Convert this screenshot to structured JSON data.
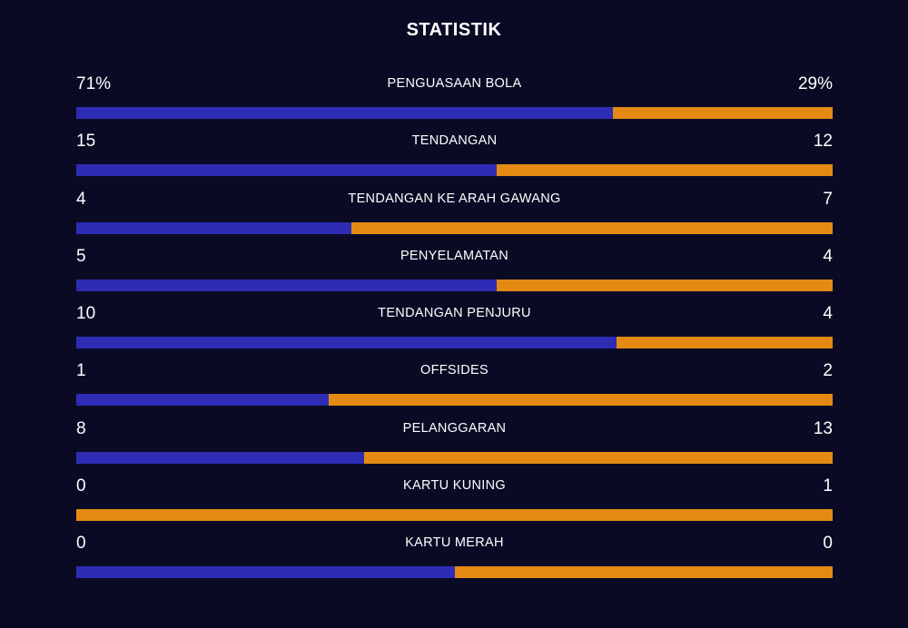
{
  "title": "STATISTIK",
  "colors": {
    "background": "#0a0a25",
    "home": "#2e2cb5",
    "away": "#e48a13",
    "text": "#ffffff"
  },
  "stats": [
    {
      "label": "PENGUASAAN BOLA",
      "home": "71%",
      "away": "29%",
      "home_share": 0.71
    },
    {
      "label": "TENDANGAN",
      "home": "15",
      "away": "12",
      "home_share": 0.5556
    },
    {
      "label": "TENDANGAN KE ARAH GAWANG",
      "home": "4",
      "away": "7",
      "home_share": 0.3636
    },
    {
      "label": "PENYELAMATAN",
      "home": "5",
      "away": "4",
      "home_share": 0.5556
    },
    {
      "label": "TENDANGAN PENJURU",
      "home": "10",
      "away": "4",
      "home_share": 0.7143
    },
    {
      "label": "OFFSIDES",
      "home": "1",
      "away": "2",
      "home_share": 0.3333
    },
    {
      "label": "PELANGGARAN",
      "home": "8",
      "away": "13",
      "home_share": 0.381
    },
    {
      "label": "KARTU KUNING",
      "home": "0",
      "away": "1",
      "home_share": 0
    },
    {
      "label": "KARTU MERAH",
      "home": "0",
      "away": "0",
      "home_share": 0.5
    }
  ]
}
